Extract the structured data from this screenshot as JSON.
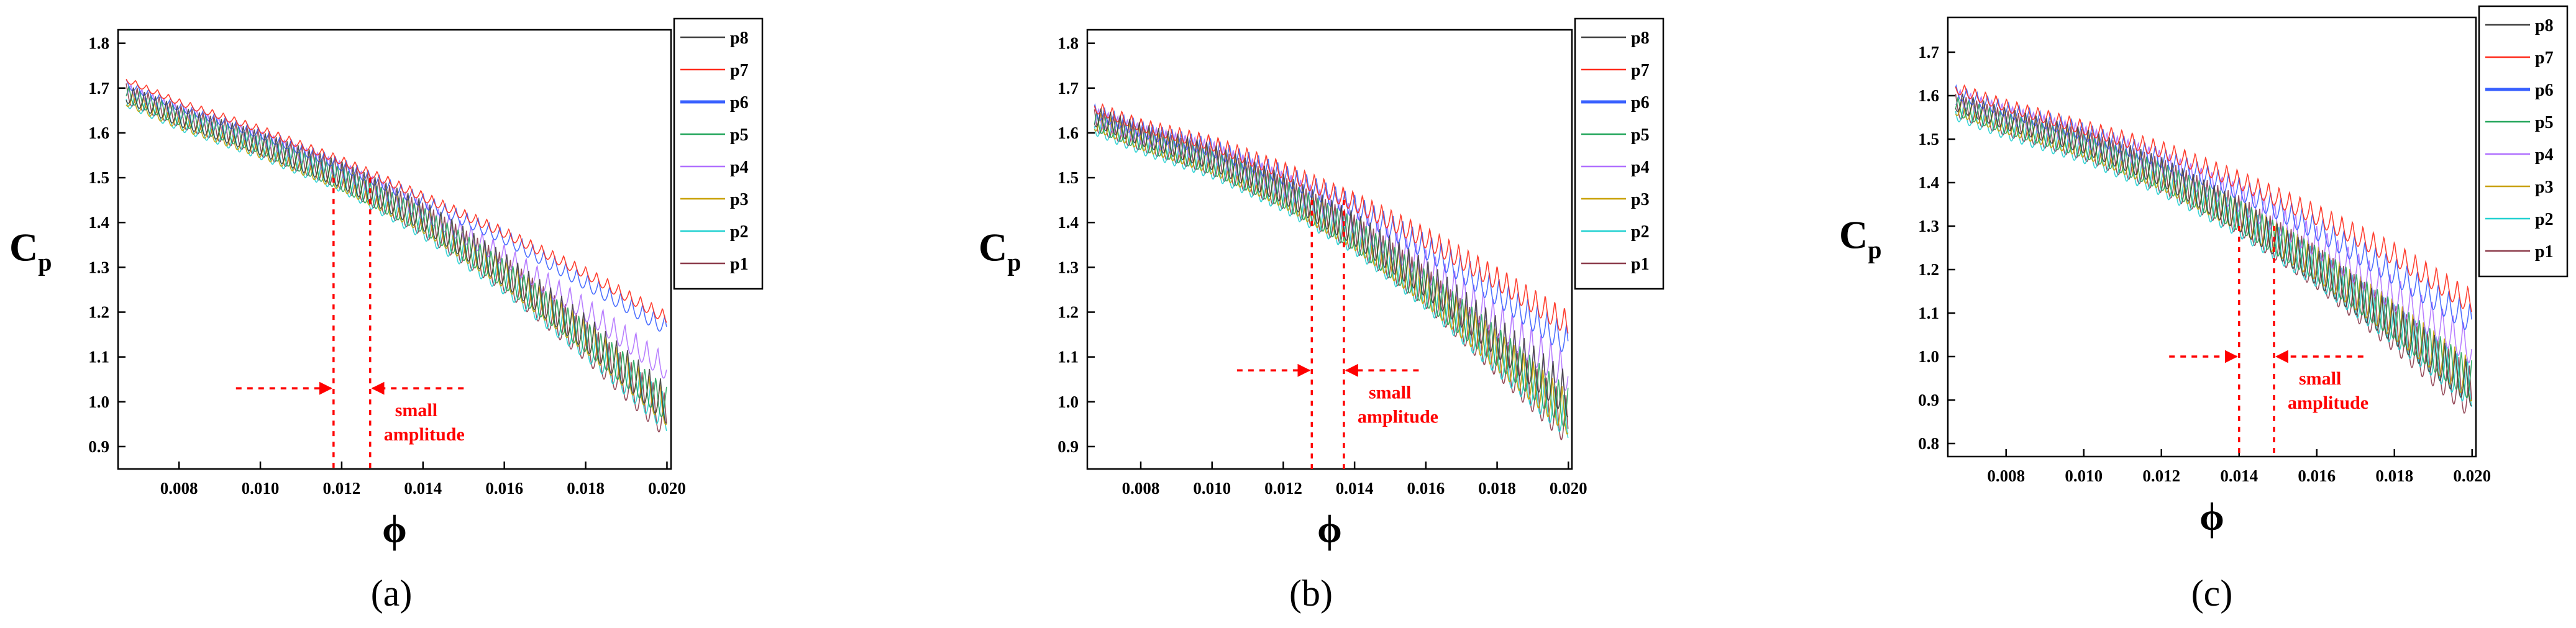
{
  "figure": {
    "panels": [
      "(a)",
      "(b)",
      "(c)"
    ]
  },
  "colors": {
    "p8": "#404040",
    "p7": "#ff2a1a",
    "p6": "#3860ff",
    "p5": "#22a55a",
    "p4": "#b070ff",
    "p3": "#c8a000",
    "p2": "#20d0d0",
    "p1": "#8b3a4a",
    "annotation": "#ff0000"
  },
  "chart_data": [
    {
      "type": "line",
      "panel_label": "(a)",
      "ylabel_main": "C",
      "ylabel_sub": "p",
      "xlabel": "ϕ",
      "xlim": [
        0.0065,
        0.0201
      ],
      "ylim": [
        0.85,
        1.83
      ],
      "xticks": [
        "0.008",
        "0.010",
        "0.012",
        "0.014",
        "0.016",
        "0.018",
        "0.020"
      ],
      "xtick_values": [
        0.008,
        0.01,
        0.012,
        0.014,
        0.016,
        0.018,
        0.02
      ],
      "yticks": [
        "0.9",
        "1.0",
        "1.1",
        "1.2",
        "1.3",
        "1.4",
        "1.5",
        "1.6",
        "1.7",
        "1.8"
      ],
      "ytick_values": [
        0.9,
        1.0,
        1.1,
        1.2,
        1.3,
        1.4,
        1.5,
        1.6,
        1.7,
        1.8
      ],
      "legend": [
        "p8",
        "p7",
        "p6",
        "p5",
        "p4",
        "p3",
        "p2",
        "p1"
      ],
      "annotation": {
        "text_line1": "small",
        "text_line2": "amplitude",
        "x_left": 0.0118,
        "x_right": 0.0127,
        "arrow_y": 1.03,
        "arrow_from_left": 0.0094,
        "arrow_from_right": 0.015,
        "line_top_y": 1.5,
        "line_bottom_y": 0.85
      },
      "series": [
        {
          "name": "p8",
          "x": [
            0.0067,
            0.008,
            0.01,
            0.012,
            0.014,
            0.016,
            0.018,
            0.02
          ],
          "y": [
            1.69,
            1.64,
            1.58,
            1.51,
            1.42,
            1.3,
            1.16,
            1.0
          ],
          "oscillation": 0.09
        },
        {
          "name": "p7",
          "x": [
            0.0067,
            0.008,
            0.01,
            0.012,
            0.014,
            0.016,
            0.018,
            0.02
          ],
          "y": [
            1.72,
            1.67,
            1.61,
            1.54,
            1.46,
            1.38,
            1.29,
            1.19
          ],
          "oscillation": 0.03
        },
        {
          "name": "p6",
          "x": [
            0.0067,
            0.008,
            0.01,
            0.012,
            0.014,
            0.016,
            0.018,
            0.02
          ],
          "y": [
            1.71,
            1.66,
            1.6,
            1.53,
            1.45,
            1.37,
            1.27,
            1.17
          ],
          "oscillation": 0.04
        },
        {
          "name": "p5",
          "x": [
            0.0067,
            0.008,
            0.01,
            0.012,
            0.014,
            0.016,
            0.018,
            0.02
          ],
          "y": [
            1.69,
            1.64,
            1.58,
            1.5,
            1.41,
            1.29,
            1.15,
            1.0
          ],
          "oscillation": 0.08
        },
        {
          "name": "p4",
          "x": [
            0.0067,
            0.008,
            0.01,
            0.012,
            0.014,
            0.016,
            0.018,
            0.02
          ],
          "y": [
            1.7,
            1.65,
            1.59,
            1.52,
            1.43,
            1.33,
            1.21,
            1.08
          ],
          "oscillation": 0.06
        },
        {
          "name": "p3",
          "x": [
            0.0067,
            0.008,
            0.01,
            0.012,
            0.014,
            0.016,
            0.018,
            0.02
          ],
          "y": [
            1.68,
            1.63,
            1.57,
            1.5,
            1.41,
            1.29,
            1.15,
            0.99
          ],
          "oscillation": 0.08
        },
        {
          "name": "p2",
          "x": [
            0.0067,
            0.008,
            0.01,
            0.012,
            0.014,
            0.016,
            0.018,
            0.02
          ],
          "y": [
            1.68,
            1.63,
            1.57,
            1.5,
            1.4,
            1.28,
            1.14,
            0.98
          ],
          "oscillation": 0.09
        },
        {
          "name": "p1",
          "x": [
            0.0067,
            0.008,
            0.01,
            0.012,
            0.014,
            0.016,
            0.018,
            0.02
          ],
          "y": [
            1.69,
            1.64,
            1.58,
            1.51,
            1.41,
            1.29,
            1.14,
            0.97
          ],
          "oscillation": 0.1
        }
      ]
    },
    {
      "type": "line",
      "panel_label": "(b)",
      "ylabel_main": "C",
      "ylabel_sub": "p",
      "xlabel": "ϕ",
      "xlim": [
        0.0065,
        0.0201
      ],
      "ylim": [
        0.85,
        1.83
      ],
      "xticks": [
        "0.008",
        "0.010",
        "0.012",
        "0.014",
        "0.016",
        "0.018",
        "0.020"
      ],
      "xtick_values": [
        0.008,
        0.01,
        0.012,
        0.014,
        0.016,
        0.018,
        0.02
      ],
      "yticks": [
        "0.9",
        "1.0",
        "1.1",
        "1.2",
        "1.3",
        "1.4",
        "1.5",
        "1.6",
        "1.7",
        "1.8"
      ],
      "ytick_values": [
        0.9,
        1.0,
        1.1,
        1.2,
        1.3,
        1.4,
        1.5,
        1.6,
        1.7,
        1.8
      ],
      "legend": [
        "p8",
        "p7",
        "p6",
        "p5",
        "p4",
        "p3",
        "p2",
        "p1"
      ],
      "annotation": {
        "text_line1": "small",
        "text_line2": "amplitude",
        "x_left": 0.0128,
        "x_right": 0.0137,
        "arrow_y": 1.07,
        "arrow_from_left": 0.0107,
        "arrow_from_right": 0.0158,
        "line_top_y": 1.45,
        "line_bottom_y": 0.85
      },
      "series": [
        {
          "name": "p8",
          "x": [
            0.0067,
            0.008,
            0.01,
            0.012,
            0.014,
            0.016,
            0.018,
            0.02
          ],
          "y": [
            1.64,
            1.6,
            1.55,
            1.48,
            1.39,
            1.28,
            1.15,
            1.02
          ],
          "oscillation": 0.1
        },
        {
          "name": "p7",
          "x": [
            0.0067,
            0.008,
            0.01,
            0.012,
            0.014,
            0.016,
            0.018,
            0.02
          ],
          "y": [
            1.66,
            1.62,
            1.58,
            1.52,
            1.45,
            1.37,
            1.28,
            1.18
          ],
          "oscillation": 0.06
        },
        {
          "name": "p6",
          "x": [
            0.0067,
            0.008,
            0.01,
            0.012,
            0.014,
            0.016,
            0.018,
            0.02
          ],
          "y": [
            1.65,
            1.61,
            1.57,
            1.51,
            1.44,
            1.35,
            1.25,
            1.14
          ],
          "oscillation": 0.07
        },
        {
          "name": "p5",
          "x": [
            0.0067,
            0.008,
            0.01,
            0.012,
            0.014,
            0.016,
            0.018,
            0.02
          ],
          "y": [
            1.63,
            1.59,
            1.54,
            1.47,
            1.38,
            1.26,
            1.13,
            0.99
          ],
          "oscillation": 0.1
        },
        {
          "name": "p4",
          "x": [
            0.0067,
            0.008,
            0.01,
            0.012,
            0.014,
            0.016,
            0.018,
            0.02
          ],
          "y": [
            1.64,
            1.6,
            1.56,
            1.49,
            1.41,
            1.31,
            1.19,
            1.07
          ],
          "oscillation": 0.09
        },
        {
          "name": "p3",
          "x": [
            0.0067,
            0.008,
            0.01,
            0.012,
            0.014,
            0.016,
            0.018,
            0.02
          ],
          "y": [
            1.63,
            1.59,
            1.54,
            1.47,
            1.38,
            1.26,
            1.12,
            0.98
          ],
          "oscillation": 0.1
        },
        {
          "name": "p2",
          "x": [
            0.0067,
            0.008,
            0.01,
            0.012,
            0.014,
            0.016,
            0.018,
            0.02
          ],
          "y": [
            1.62,
            1.58,
            1.53,
            1.46,
            1.37,
            1.25,
            1.11,
            0.97
          ],
          "oscillation": 0.1
        },
        {
          "name": "p1",
          "x": [
            0.0067,
            0.008,
            0.01,
            0.012,
            0.014,
            0.016,
            0.018,
            0.02
          ],
          "y": [
            1.63,
            1.59,
            1.54,
            1.47,
            1.38,
            1.26,
            1.11,
            0.96
          ],
          "oscillation": 0.11
        }
      ]
    },
    {
      "type": "line",
      "panel_label": "(c)",
      "ylabel_main": "C",
      "ylabel_sub": "p",
      "xlabel": "ϕ",
      "xlim": [
        0.0065,
        0.0201
      ],
      "ylim": [
        0.77,
        1.78
      ],
      "xticks": [
        "0.008",
        "0.010",
        "0.012",
        "0.014",
        "0.016",
        "0.018",
        "0.020"
      ],
      "xtick_values": [
        0.008,
        0.01,
        0.012,
        0.014,
        0.016,
        0.018,
        0.02
      ],
      "yticks": [
        "0.8",
        "0.9",
        "1.0",
        "1.1",
        "1.2",
        "1.3",
        "1.4",
        "1.5",
        "1.6",
        "1.7"
      ],
      "ytick_values": [
        0.8,
        0.9,
        1.0,
        1.1,
        1.2,
        1.3,
        1.4,
        1.5,
        1.6,
        1.7
      ],
      "legend": [
        "p8",
        "p7",
        "p6",
        "p5",
        "p4",
        "p3",
        "p2",
        "p1"
      ],
      "annotation": {
        "text_line1": "small",
        "text_line2": "amplitude",
        "x_left": 0.014,
        "x_right": 0.0149,
        "arrow_y": 1.0,
        "arrow_from_left": 0.0122,
        "arrow_from_right": 0.0172,
        "line_top_y": 1.3,
        "line_bottom_y": 0.77
      },
      "series": [
        {
          "name": "p8",
          "x": [
            0.0067,
            0.008,
            0.01,
            0.012,
            0.014,
            0.016,
            0.018,
            0.02
          ],
          "y": [
            1.59,
            1.55,
            1.5,
            1.43,
            1.33,
            1.21,
            1.08,
            0.94
          ],
          "oscillation": 0.1
        },
        {
          "name": "p7",
          "x": [
            0.0067,
            0.008,
            0.01,
            0.012,
            0.014,
            0.016,
            0.018,
            0.02
          ],
          "y": [
            1.62,
            1.58,
            1.53,
            1.48,
            1.41,
            1.33,
            1.24,
            1.13
          ],
          "oscillation": 0.06
        },
        {
          "name": "p6",
          "x": [
            0.0067,
            0.008,
            0.01,
            0.012,
            0.014,
            0.016,
            0.018,
            0.02
          ],
          "y": [
            1.61,
            1.57,
            1.52,
            1.46,
            1.39,
            1.3,
            1.2,
            1.09
          ],
          "oscillation": 0.07
        },
        {
          "name": "p5",
          "x": [
            0.0067,
            0.008,
            0.01,
            0.012,
            0.014,
            0.016,
            0.018,
            0.02
          ],
          "y": [
            1.58,
            1.54,
            1.49,
            1.42,
            1.33,
            1.22,
            1.09,
            0.95
          ],
          "oscillation": 0.1
        },
        {
          "name": "p4",
          "x": [
            0.0067,
            0.008,
            0.01,
            0.012,
            0.014,
            0.016,
            0.018,
            0.02
          ],
          "y": [
            1.6,
            1.56,
            1.51,
            1.45,
            1.37,
            1.27,
            1.15,
            1.03
          ],
          "oscillation": 0.09
        },
        {
          "name": "p3",
          "x": [
            0.0067,
            0.008,
            0.01,
            0.012,
            0.014,
            0.016,
            0.018,
            0.02
          ],
          "y": [
            1.58,
            1.54,
            1.49,
            1.42,
            1.33,
            1.22,
            1.09,
            0.95
          ],
          "oscillation": 0.1
        },
        {
          "name": "p2",
          "x": [
            0.0067,
            0.008,
            0.01,
            0.012,
            0.014,
            0.016,
            0.018,
            0.02
          ],
          "y": [
            1.57,
            1.53,
            1.48,
            1.41,
            1.32,
            1.21,
            1.08,
            0.94
          ],
          "oscillation": 0.11
        },
        {
          "name": "p1",
          "x": [
            0.0067,
            0.008,
            0.01,
            0.012,
            0.014,
            0.016,
            0.018,
            0.02
          ],
          "y": [
            1.58,
            1.54,
            1.49,
            1.42,
            1.33,
            1.21,
            1.07,
            0.92
          ],
          "oscillation": 0.12
        }
      ]
    }
  ]
}
